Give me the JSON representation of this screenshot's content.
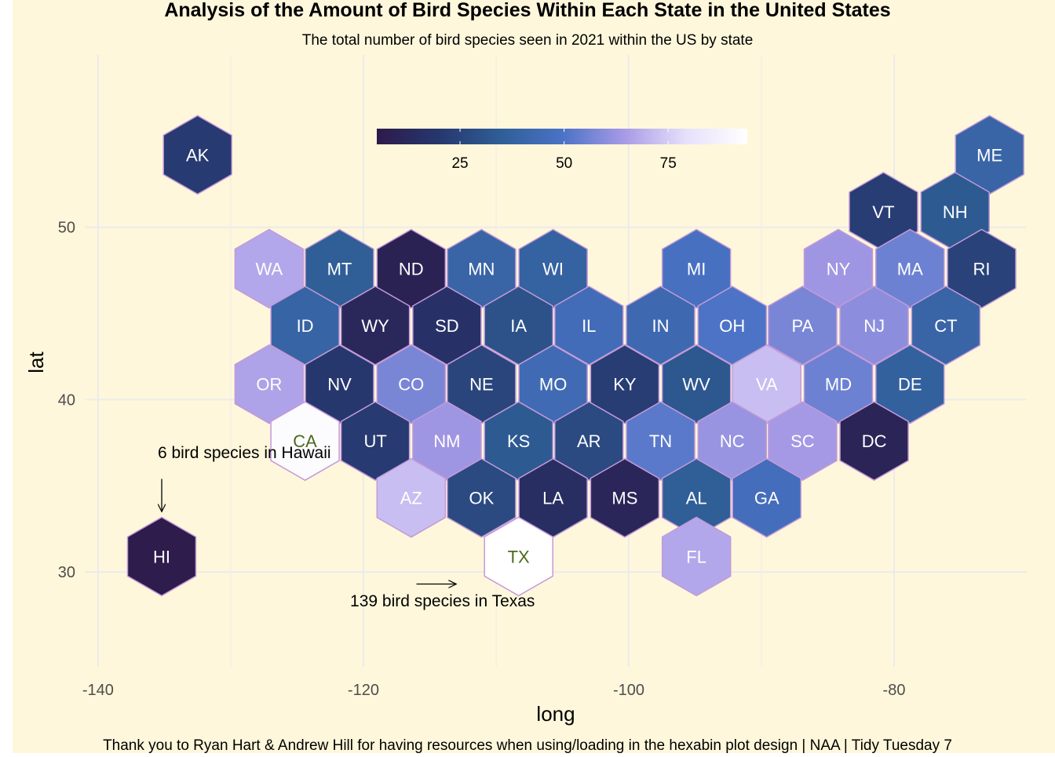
{
  "chart_data": {
    "type": "heatmap",
    "title": "Analysis of the Amount of Bird Species Within Each State in the United States",
    "subtitle": "The total number of bird species seen in 2021 within the US by state",
    "caption": "Thank you to Ryan Hart & Andrew Hill for having resources when using/loading in the hexabin plot design | NAA | Tidy Tuesday 7",
    "xlabel": "long",
    "ylabel": "lat",
    "xlim": [
      -141,
      -70
    ],
    "ylim": [
      24.5,
      60
    ],
    "x_ticks": [
      -140,
      -120,
      -100,
      -80
    ],
    "y_ticks": [
      30,
      40,
      50
    ],
    "grid": true,
    "legend": {
      "position": "top",
      "breaks": [
        25,
        50,
        75
      ],
      "range": [
        5,
        94
      ],
      "colors": [
        "#2d1a4a",
        "#26376e",
        "#2f5e96",
        "#4a72c6",
        "#a79ae6",
        "#e6e0fb",
        "#ffffff"
      ]
    },
    "hex_border_color": "#c49ad8",
    "label_color": "#ffffff",
    "highlight_label_color": "#4a6a1a",
    "background_color": "#fff7db",
    "hexes": [
      {
        "state": "AK",
        "x": -132.5,
        "y": 54.2,
        "value": 21
      },
      {
        "state": "ME",
        "x": -72.8,
        "y": 54.2,
        "value": 40
      },
      {
        "state": "VT",
        "x": -80.8,
        "y": 50.9,
        "value": 22
      },
      {
        "state": "NH",
        "x": -75.4,
        "y": 50.9,
        "value": 33
      },
      {
        "state": "WA",
        "x": -127.1,
        "y": 47.6,
        "value": 67
      },
      {
        "state": "MT",
        "x": -121.8,
        "y": 47.6,
        "value": 35
      },
      {
        "state": "ND",
        "x": -116.4,
        "y": 47.6,
        "value": 9
      },
      {
        "state": "MN",
        "x": -111.1,
        "y": 47.6,
        "value": 40
      },
      {
        "state": "WI",
        "x": -105.7,
        "y": 47.6,
        "value": 38
      },
      {
        "state": "MI",
        "x": -94.9,
        "y": 47.6,
        "value": 48
      },
      {
        "state": "NY",
        "x": -84.2,
        "y": 47.6,
        "value": 63
      },
      {
        "state": "MA",
        "x": -78.8,
        "y": 47.6,
        "value": 55
      },
      {
        "state": "RI",
        "x": -73.4,
        "y": 47.6,
        "value": 24
      },
      {
        "state": "ID",
        "x": -124.4,
        "y": 44.3,
        "value": 39
      },
      {
        "state": "WY",
        "x": -119.1,
        "y": 44.3,
        "value": 12
      },
      {
        "state": "SD",
        "x": -113.7,
        "y": 44.3,
        "value": 17
      },
      {
        "state": "IA",
        "x": -108.3,
        "y": 44.3,
        "value": 30
      },
      {
        "state": "IL",
        "x": -103.0,
        "y": 44.3,
        "value": 45
      },
      {
        "state": "IN",
        "x": -97.6,
        "y": 44.3,
        "value": 43
      },
      {
        "state": "OH",
        "x": -92.2,
        "y": 44.3,
        "value": 50
      },
      {
        "state": "PA",
        "x": -86.9,
        "y": 44.3,
        "value": 57
      },
      {
        "state": "NJ",
        "x": -81.5,
        "y": 44.3,
        "value": 60
      },
      {
        "state": "CT",
        "x": -76.1,
        "y": 44.3,
        "value": 40
      },
      {
        "state": "OR",
        "x": -127.1,
        "y": 40.9,
        "value": 66
      },
      {
        "state": "NV",
        "x": -121.8,
        "y": 40.9,
        "value": 20
      },
      {
        "state": "CO",
        "x": -116.4,
        "y": 40.9,
        "value": 57
      },
      {
        "state": "NE",
        "x": -111.1,
        "y": 40.9,
        "value": 25
      },
      {
        "state": "MO",
        "x": -105.7,
        "y": 40.9,
        "value": 44
      },
      {
        "state": "KY",
        "x": -100.3,
        "y": 40.9,
        "value": 22
      },
      {
        "state": "WV",
        "x": -94.9,
        "y": 40.9,
        "value": 32
      },
      {
        "state": "VA",
        "x": -89.6,
        "y": 40.9,
        "value": 72
      },
      {
        "state": "MD",
        "x": -84.2,
        "y": 40.9,
        "value": 55
      },
      {
        "state": "DE",
        "x": -78.8,
        "y": 40.9,
        "value": 37
      },
      {
        "state": "CA",
        "x": -124.4,
        "y": 37.6,
        "value": 92
      },
      {
        "state": "UT",
        "x": -119.1,
        "y": 37.6,
        "value": 21
      },
      {
        "state": "NM",
        "x": -113.7,
        "y": 37.6,
        "value": 63
      },
      {
        "state": "KS",
        "x": -108.3,
        "y": 37.6,
        "value": 33
      },
      {
        "state": "AR",
        "x": -103.0,
        "y": 37.6,
        "value": 27
      },
      {
        "state": "TN",
        "x": -97.6,
        "y": 37.6,
        "value": 52
      },
      {
        "state": "NC",
        "x": -92.2,
        "y": 37.6,
        "value": 62
      },
      {
        "state": "SC",
        "x": -86.9,
        "y": 37.6,
        "value": 64
      },
      {
        "state": "DC",
        "x": -81.5,
        "y": 37.6,
        "value": 10
      },
      {
        "state": "AZ",
        "x": -116.4,
        "y": 34.3,
        "value": 72
      },
      {
        "state": "OK",
        "x": -111.1,
        "y": 34.3,
        "value": 27
      },
      {
        "state": "LA",
        "x": -105.7,
        "y": 34.3,
        "value": 15
      },
      {
        "state": "MS",
        "x": -100.3,
        "y": 34.3,
        "value": 11
      },
      {
        "state": "AL",
        "x": -94.9,
        "y": 34.3,
        "value": 35
      },
      {
        "state": "GA",
        "x": -89.6,
        "y": 34.3,
        "value": 46
      },
      {
        "state": "HI",
        "x": -135.2,
        "y": 30.9,
        "value": 6
      },
      {
        "state": "TX",
        "x": -108.3,
        "y": 30.9,
        "value": 139
      },
      {
        "state": "FL",
        "x": -94.9,
        "y": 30.9,
        "value": 67
      }
    ],
    "highlighted_states": [
      "CA",
      "TX"
    ],
    "annotations": [
      {
        "text": "6 bird species in Hawaii",
        "x": -135.5,
        "y": 36.6,
        "arrow_from": [
          -135.2,
          35.4
        ],
        "arrow_to": [
          -135.2,
          33.5
        ]
      },
      {
        "text": "139 bird species in Texas",
        "x": -121.0,
        "y": 28.0,
        "arrow_from": [
          -116.0,
          29.3
        ],
        "arrow_to": [
          -113.0,
          29.3
        ]
      }
    ]
  }
}
